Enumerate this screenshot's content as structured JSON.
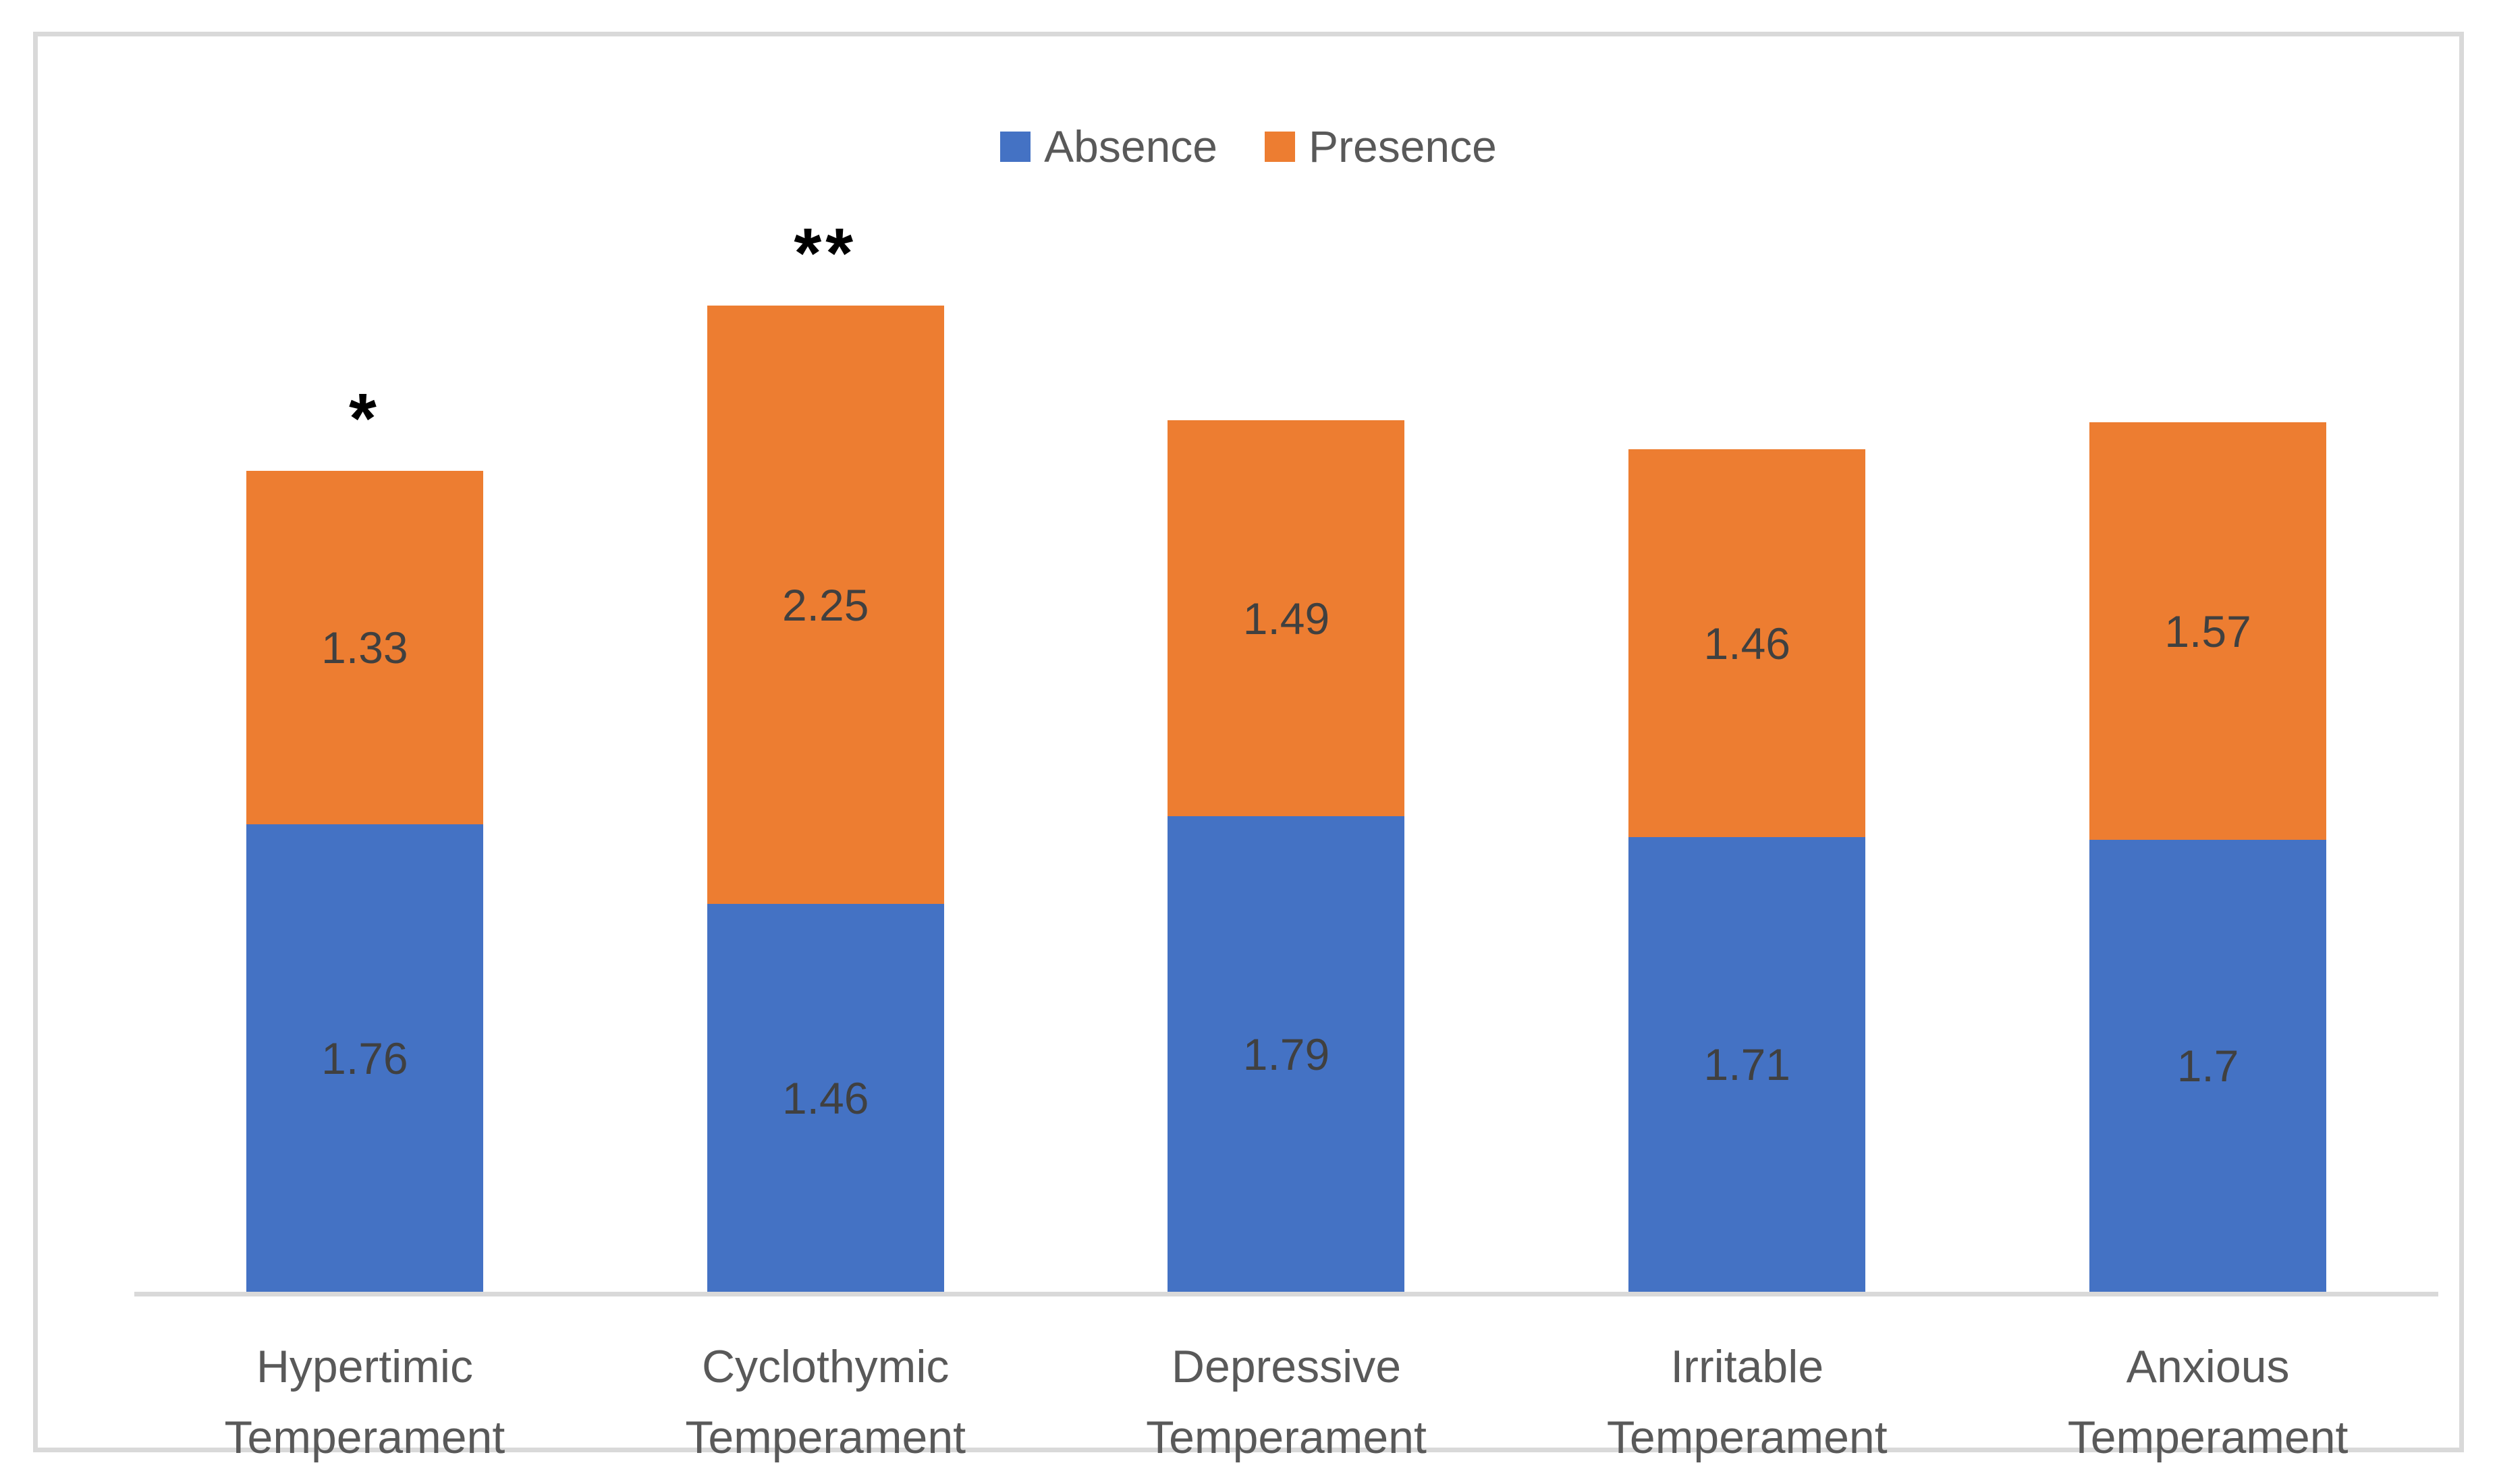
{
  "chart_data": {
    "type": "bar",
    "stacked": true,
    "orientation": "vertical",
    "title": "",
    "xlabel": "",
    "ylabel": "",
    "y_axis_visible": false,
    "grid": false,
    "legend_position": "top-center",
    "categories": [
      "Hypertimic Temperament",
      "Cyclothymic Temperament",
      "Depressive Temperament",
      "Irritable Temperament",
      "Anxious Temperament"
    ],
    "series": [
      {
        "name": "Absence",
        "color": "#4472C4",
        "values": [
          1.76,
          1.46,
          1.79,
          1.71,
          1.7
        ]
      },
      {
        "name": "Presence",
        "color": "#ED7D31",
        "values": [
          1.33,
          2.25,
          1.49,
          1.46,
          1.57
        ]
      }
    ],
    "stack_totals": [
      3.09,
      3.71,
      3.28,
      3.17,
      3.27
    ],
    "annotations": [
      "*",
      "**",
      "",
      "",
      ""
    ],
    "data_label_color": "#404040",
    "category_label_color": "#595959",
    "axis_line_color": "#D9D9D9"
  },
  "legend": {
    "items": [
      {
        "label": "Absence",
        "color": "#4472C4"
      },
      {
        "label": "Presence",
        "color": "#ED7D31"
      }
    ]
  },
  "frame": {
    "border_color": "#D9D9D9",
    "background": "#ffffff"
  }
}
